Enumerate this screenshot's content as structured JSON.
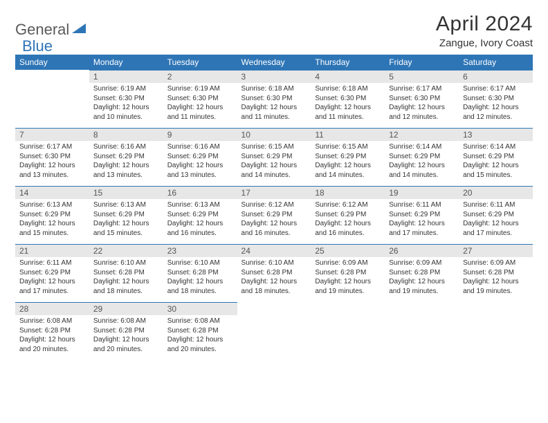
{
  "brand": {
    "part1": "General",
    "part2": "Blue",
    "logo_color": "#2e75b6"
  },
  "title": "April 2024",
  "location": "Zangue, Ivory Coast",
  "colors": {
    "header_bg": "#2e75b6",
    "header_fg": "#ffffff",
    "daynum_bg": "#e7e7e7",
    "rule": "#2e75b6",
    "text": "#333333"
  },
  "weekdays": [
    "Sunday",
    "Monday",
    "Tuesday",
    "Wednesday",
    "Thursday",
    "Friday",
    "Saturday"
  ],
  "weeks": [
    [
      null,
      {
        "n": "1",
        "sunrise": "6:19 AM",
        "sunset": "6:30 PM",
        "daylight": "12 hours and 10 minutes."
      },
      {
        "n": "2",
        "sunrise": "6:19 AM",
        "sunset": "6:30 PM",
        "daylight": "12 hours and 11 minutes."
      },
      {
        "n": "3",
        "sunrise": "6:18 AM",
        "sunset": "6:30 PM",
        "daylight": "12 hours and 11 minutes."
      },
      {
        "n": "4",
        "sunrise": "6:18 AM",
        "sunset": "6:30 PM",
        "daylight": "12 hours and 11 minutes."
      },
      {
        "n": "5",
        "sunrise": "6:17 AM",
        "sunset": "6:30 PM",
        "daylight": "12 hours and 12 minutes."
      },
      {
        "n": "6",
        "sunrise": "6:17 AM",
        "sunset": "6:30 PM",
        "daylight": "12 hours and 12 minutes."
      }
    ],
    [
      {
        "n": "7",
        "sunrise": "6:17 AM",
        "sunset": "6:30 PM",
        "daylight": "12 hours and 13 minutes."
      },
      {
        "n": "8",
        "sunrise": "6:16 AM",
        "sunset": "6:29 PM",
        "daylight": "12 hours and 13 minutes."
      },
      {
        "n": "9",
        "sunrise": "6:16 AM",
        "sunset": "6:29 PM",
        "daylight": "12 hours and 13 minutes."
      },
      {
        "n": "10",
        "sunrise": "6:15 AM",
        "sunset": "6:29 PM",
        "daylight": "12 hours and 14 minutes."
      },
      {
        "n": "11",
        "sunrise": "6:15 AM",
        "sunset": "6:29 PM",
        "daylight": "12 hours and 14 minutes."
      },
      {
        "n": "12",
        "sunrise": "6:14 AM",
        "sunset": "6:29 PM",
        "daylight": "12 hours and 14 minutes."
      },
      {
        "n": "13",
        "sunrise": "6:14 AM",
        "sunset": "6:29 PM",
        "daylight": "12 hours and 15 minutes."
      }
    ],
    [
      {
        "n": "14",
        "sunrise": "6:13 AM",
        "sunset": "6:29 PM",
        "daylight": "12 hours and 15 minutes."
      },
      {
        "n": "15",
        "sunrise": "6:13 AM",
        "sunset": "6:29 PM",
        "daylight": "12 hours and 15 minutes."
      },
      {
        "n": "16",
        "sunrise": "6:13 AM",
        "sunset": "6:29 PM",
        "daylight": "12 hours and 16 minutes."
      },
      {
        "n": "17",
        "sunrise": "6:12 AM",
        "sunset": "6:29 PM",
        "daylight": "12 hours and 16 minutes."
      },
      {
        "n": "18",
        "sunrise": "6:12 AM",
        "sunset": "6:29 PM",
        "daylight": "12 hours and 16 minutes."
      },
      {
        "n": "19",
        "sunrise": "6:11 AM",
        "sunset": "6:29 PM",
        "daylight": "12 hours and 17 minutes."
      },
      {
        "n": "20",
        "sunrise": "6:11 AM",
        "sunset": "6:29 PM",
        "daylight": "12 hours and 17 minutes."
      }
    ],
    [
      {
        "n": "21",
        "sunrise": "6:11 AM",
        "sunset": "6:29 PM",
        "daylight": "12 hours and 17 minutes."
      },
      {
        "n": "22",
        "sunrise": "6:10 AM",
        "sunset": "6:28 PM",
        "daylight": "12 hours and 18 minutes."
      },
      {
        "n": "23",
        "sunrise": "6:10 AM",
        "sunset": "6:28 PM",
        "daylight": "12 hours and 18 minutes."
      },
      {
        "n": "24",
        "sunrise": "6:10 AM",
        "sunset": "6:28 PM",
        "daylight": "12 hours and 18 minutes."
      },
      {
        "n": "25",
        "sunrise": "6:09 AM",
        "sunset": "6:28 PM",
        "daylight": "12 hours and 19 minutes."
      },
      {
        "n": "26",
        "sunrise": "6:09 AM",
        "sunset": "6:28 PM",
        "daylight": "12 hours and 19 minutes."
      },
      {
        "n": "27",
        "sunrise": "6:09 AM",
        "sunset": "6:28 PM",
        "daylight": "12 hours and 19 minutes."
      }
    ],
    [
      {
        "n": "28",
        "sunrise": "6:08 AM",
        "sunset": "6:28 PM",
        "daylight": "12 hours and 20 minutes."
      },
      {
        "n": "29",
        "sunrise": "6:08 AM",
        "sunset": "6:28 PM",
        "daylight": "12 hours and 20 minutes."
      },
      {
        "n": "30",
        "sunrise": "6:08 AM",
        "sunset": "6:28 PM",
        "daylight": "12 hours and 20 minutes."
      },
      null,
      null,
      null,
      null
    ]
  ],
  "labels": {
    "sunrise": "Sunrise:",
    "sunset": "Sunset:",
    "daylight": "Daylight:"
  }
}
